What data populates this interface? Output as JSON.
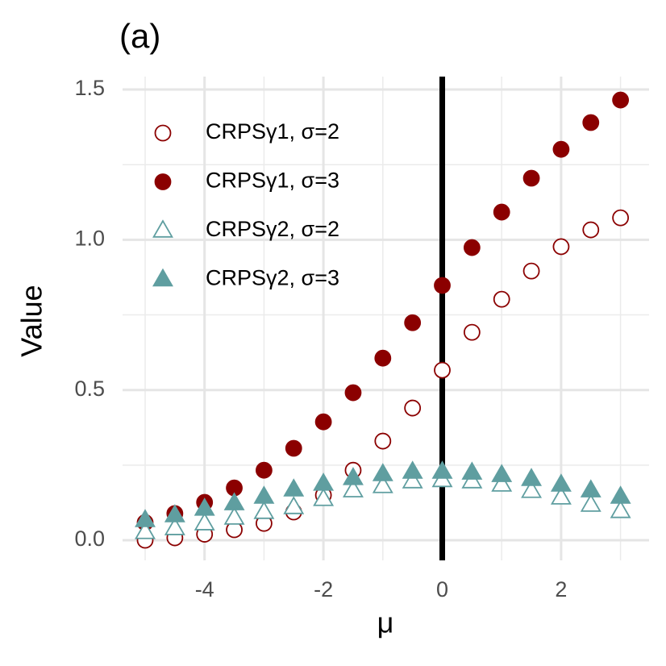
{
  "chart_data": {
    "type": "scatter",
    "title": "(a)",
    "x_label": "μ",
    "y_label": "Value",
    "x": [
      -5,
      -4.5,
      -4,
      -3.5,
      -3,
      -2.5,
      -2,
      -1.5,
      -1,
      -0.5,
      0,
      0.5,
      1,
      1.5,
      2,
      2.5,
      3
    ],
    "series": [
      {
        "name": "CRPSγ1, σ=2",
        "color": "#8b0000",
        "marker": "circle",
        "filled": false,
        "values": [
          0.0,
          0.008,
          0.02,
          0.035,
          0.056,
          0.094,
          0.15,
          0.233,
          0.33,
          0.44,
          0.566,
          0.692,
          0.802,
          0.896,
          0.977,
          1.033,
          1.073
        ]
      },
      {
        "name": "CRPSγ1, σ=3",
        "color": "#8b0000",
        "marker": "circle",
        "filled": true,
        "values": [
          0.059,
          0.089,
          0.126,
          0.174,
          0.233,
          0.306,
          0.394,
          0.491,
          0.606,
          0.724,
          0.848,
          0.974,
          1.092,
          1.205,
          1.301,
          1.39,
          1.465
        ]
      },
      {
        "name": "CRPSγ2, σ=2",
        "color": "#5f9ea0",
        "marker": "triangle",
        "filled": false,
        "values": [
          0.027,
          0.04,
          0.056,
          0.075,
          0.094,
          0.11,
          0.137,
          0.166,
          0.18,
          0.196,
          0.2,
          0.196,
          0.185,
          0.164,
          0.142,
          0.118,
          0.097
        ]
      },
      {
        "name": "CRPSγ2, σ=3",
        "color": "#5f9ea0",
        "marker": "triangle",
        "filled": true,
        "values": [
          0.067,
          0.083,
          0.105,
          0.123,
          0.145,
          0.169,
          0.188,
          0.207,
          0.22,
          0.228,
          0.228,
          0.225,
          0.217,
          0.204,
          0.185,
          0.166,
          0.145
        ]
      }
    ],
    "xlim": [
      -5.38,
      3.48
    ],
    "ylim": [
      -0.067,
      1.543
    ],
    "xticks": [
      -4,
      -2,
      0,
      2
    ],
    "yticks": [
      {
        "value": 0,
        "label": "0.0"
      },
      0.5,
      {
        "value": 1,
        "label": "1.0"
      },
      1.5
    ],
    "x_minor_ticks": [
      -5,
      -3,
      -1,
      1,
      3
    ],
    "y_minor_ticks": [
      0.25,
      0.75,
      1.25
    ],
    "grid": true,
    "vline": 0,
    "legend": "top-left"
  }
}
